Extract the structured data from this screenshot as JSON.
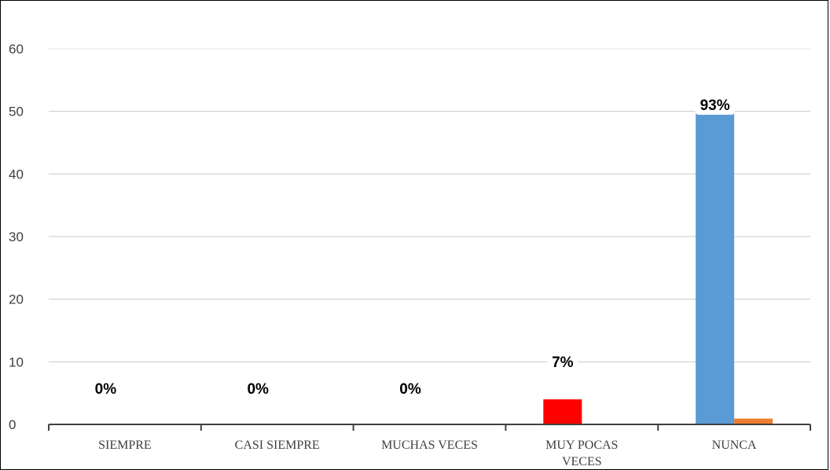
{
  "chart_data": {
    "type": "bar",
    "categories": [
      "SIEMPRE",
      "CASI SIEMPRE",
      "MUCHAS VECES",
      "MUY POCAS\nVECES",
      "NUNCA"
    ],
    "series": [
      {
        "values": [
          0,
          0,
          0,
          4,
          51
        ],
        "colors": [
          "#5B9BD5",
          "#5B9BD5",
          "#5B9BD5",
          "#FF0000",
          "#5B9BD5"
        ]
      },
      {
        "values": [
          0,
          0,
          0,
          0,
          0.93
        ],
        "color": "#ED7D31"
      }
    ],
    "data_labels": [
      "0%",
      "0%",
      "0%",
      "7%",
      "93%"
    ],
    "yticks": [
      0,
      10,
      20,
      30,
      40,
      50,
      60
    ],
    "ylim": [
      0,
      60
    ],
    "grid": true,
    "legend": "none",
    "title": "",
    "xlabel": "",
    "ylabel": ""
  }
}
